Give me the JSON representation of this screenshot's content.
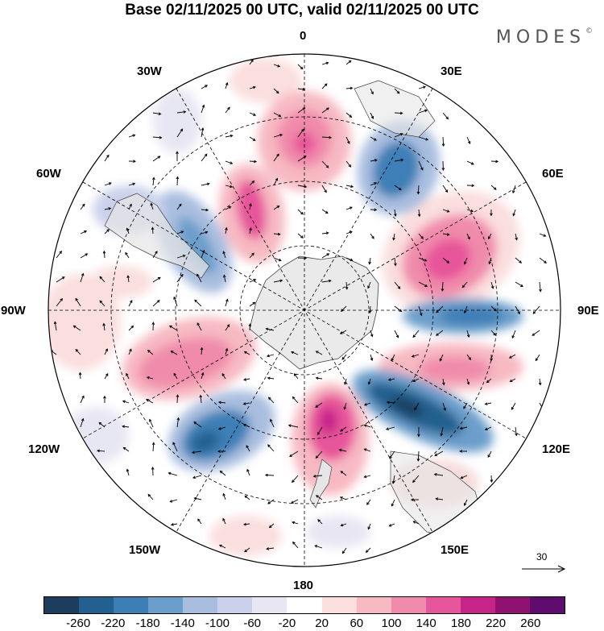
{
  "title": "Base 02/11/2025 00 UTC, valid 02/11/2025 00 UTC",
  "brand": "MODES",
  "brand_mark": "©",
  "longitudes": {
    "top": "0",
    "top_left": "30W",
    "top_right": "30E",
    "upper_left": "60W",
    "upper_right": "60E",
    "left": "90W",
    "right": "90E",
    "lower_left": "120W",
    "lower_right": "120E",
    "bottom_left": "150W",
    "bottom_right": "150E",
    "bottom": "180"
  },
  "vector_scale": {
    "label": "30"
  },
  "colorbar": {
    "colors": [
      "#1d3d5e",
      "#24608f",
      "#3c7fb6",
      "#6c9ecb",
      "#a9bedf",
      "#cbd1ea",
      "#e7e6f3",
      "#ffffff",
      "#fbdede",
      "#f7b9c2",
      "#f08bab",
      "#e7559a",
      "#c7248a",
      "#8f1271",
      "#5e0d6e"
    ],
    "ticks": [
      "-260",
      "-220",
      "-180",
      "-140",
      "-100",
      "-60",
      "-20",
      "20",
      "60",
      "100",
      "140",
      "180",
      "220",
      "260"
    ]
  }
}
